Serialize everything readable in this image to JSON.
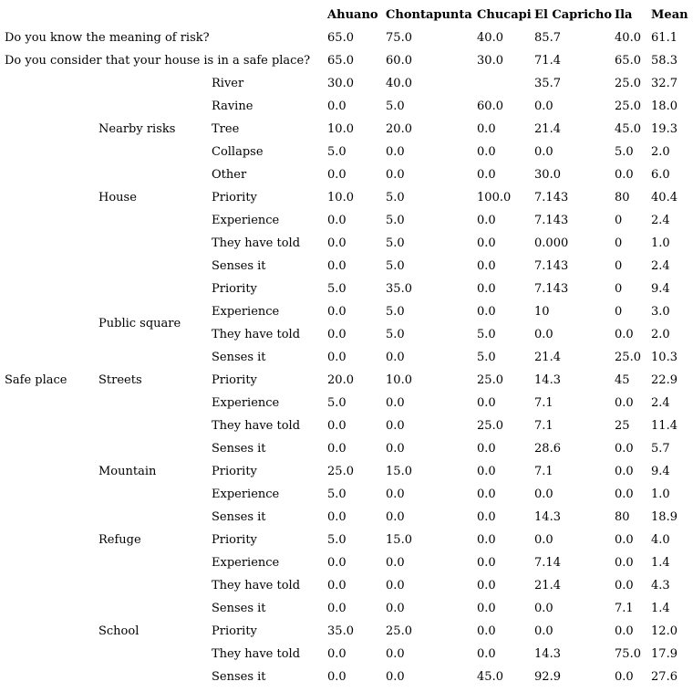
{
  "page": {
    "background_color": "#ffffff",
    "text_color": "#000000"
  },
  "table": {
    "columns": [
      "Ahuano",
      "Chontapunta",
      "Chucapi",
      "El Capricho",
      "Ila",
      "Mean"
    ],
    "rows": [
      {
        "q": "Do you know the meaning of risk?",
        "values": [
          "65.0",
          "75.0",
          "40.0",
          "85.7",
          "40.0",
          "61.1"
        ]
      },
      {
        "q": "Do you consider that your house is in a safe place?",
        "values": [
          "65.0",
          "60.0",
          "30.0",
          "71.4",
          "65.0",
          "58.3"
        ]
      },
      {
        "g1": {
          "text": "",
          "span": 13,
          "valign": "top"
        },
        "g2": {
          "text": "Nearby risks",
          "span": 5,
          "valign": "middle"
        },
        "item": "River",
        "values": [
          "30.0",
          "40.0",
          "",
          "35.7",
          "25.0",
          "32.7"
        ]
      },
      {
        "item": "Ravine",
        "values": [
          "0.0",
          "5.0",
          "60.0",
          "0.0",
          "25.0",
          "18.0"
        ]
      },
      {
        "item": "Tree",
        "values": [
          "10.0",
          "20.0",
          "0.0",
          "21.4",
          "45.0",
          "19.3"
        ]
      },
      {
        "item": "Collapse",
        "values": [
          "5.0",
          "0.0",
          "0.0",
          "0.0",
          "5.0",
          "2.0"
        ]
      },
      {
        "item": "Other",
        "values": [
          "0.0",
          "0.0",
          "0.0",
          "30.0",
          "0.0",
          "6.0"
        ]
      },
      {
        "g2": {
          "text": "House",
          "span": 4,
          "valign": "top"
        },
        "item": "Priority",
        "values": [
          "10.0",
          "5.0",
          "100.0",
          "7.143",
          "80",
          "40.4"
        ]
      },
      {
        "item": "Experience",
        "values": [
          "0.0",
          "5.0",
          "0.0",
          "7.143",
          "0",
          "2.4"
        ]
      },
      {
        "item": "They have told",
        "values": [
          "0.0",
          "5.0",
          "0.0",
          "0.000",
          "0",
          "1.0"
        ]
      },
      {
        "item": "Senses it",
        "values": [
          "0.0",
          "5.0",
          "0.0",
          "7.143",
          "0",
          "2.4"
        ]
      },
      {
        "g2": {
          "text": "Public square",
          "span": 4,
          "valign": "middle"
        },
        "item": "Priority",
        "values": [
          "5.0",
          "35.0",
          "0.0",
          "7.143",
          "0",
          "9.4"
        ]
      },
      {
        "item": "Experience",
        "values": [
          "0.0",
          "5.0",
          "0.0",
          "10",
          "0",
          "3.0"
        ]
      },
      {
        "item": "They have told",
        "values": [
          "0.0",
          "5.0",
          "5.0",
          "0.0",
          "0.0",
          "2.0"
        ]
      },
      {
        "item": "Senses it",
        "values": [
          "0.0",
          "0.0",
          "5.0",
          "21.4",
          "25.0",
          "10.3"
        ]
      },
      {
        "g1": {
          "text": "Safe place",
          "span": 14,
          "valign": "top"
        },
        "g2": {
          "text": "Streets",
          "span": 4,
          "valign": "top"
        },
        "item": "Priority",
        "values": [
          "20.0",
          "10.0",
          "25.0",
          "14.3",
          "45",
          "22.9"
        ]
      },
      {
        "item": "Experience",
        "values": [
          "5.0",
          "0.0",
          "0.0",
          "7.1",
          "0.0",
          "2.4"
        ]
      },
      {
        "item": "They have told",
        "values": [
          "0.0",
          "0.0",
          "25.0",
          "7.1",
          "25",
          "11.4"
        ]
      },
      {
        "item": "Senses it",
        "values": [
          "0.0",
          "0.0",
          "0.0",
          "28.6",
          "0.0",
          "5.7"
        ]
      },
      {
        "g2": {
          "text": "Mountain",
          "span": 3,
          "valign": "top"
        },
        "item": "Priority",
        "values": [
          "25.0",
          "15.0",
          "0.0",
          "7.1",
          "0.0",
          "9.4"
        ]
      },
      {
        "item": "Experience",
        "values": [
          "5.0",
          "0.0",
          "0.0",
          "0.0",
          "0.0",
          "1.0"
        ]
      },
      {
        "item": "Senses it",
        "values": [
          "0.0",
          "0.0",
          "0.0",
          "14.3",
          "80",
          "18.9"
        ]
      },
      {
        "g2": {
          "text": "Refuge",
          "span": 4,
          "valign": "top"
        },
        "item": "Priority",
        "values": [
          "5.0",
          "15.0",
          "0.0",
          "0.0",
          "0.0",
          "4.0"
        ]
      },
      {
        "item": "Experience",
        "values": [
          "0.0",
          "0.0",
          "0.0",
          "7.14",
          "0.0",
          "1.4"
        ]
      },
      {
        "item": "They have told",
        "values": [
          "0.0",
          "0.0",
          "0.0",
          "21.4",
          "0.0",
          "4.3"
        ]
      },
      {
        "item": "Senses it",
        "values": [
          "0.0",
          "0.0",
          "0.0",
          "0.0",
          "7.1",
          "1.4"
        ]
      },
      {
        "g2": {
          "text": "School",
          "span": 3,
          "valign": "top"
        },
        "item": "Priority",
        "values": [
          "35.0",
          "25.0",
          "0.0",
          "0.0",
          "0.0",
          "12.0"
        ]
      },
      {
        "item": "They have told",
        "values": [
          "0.0",
          "0.0",
          "0.0",
          "14.3",
          "75.0",
          "17.9"
        ]
      },
      {
        "item": "Senses it",
        "values": [
          "0.0",
          "0.0",
          "45.0",
          "92.9",
          "0.0",
          "27.6"
        ]
      }
    ]
  }
}
